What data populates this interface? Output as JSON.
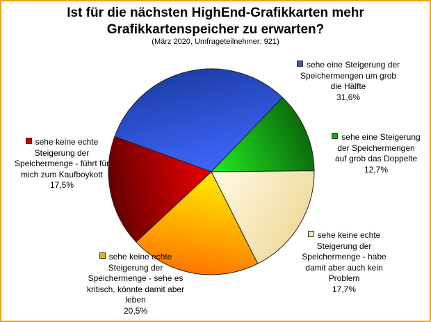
{
  "chart_data": {
    "type": "pie",
    "title_line1": "Ist für die nächsten HighEnd-Grafikkarten mehr",
    "title_line2": "Grafikkartenspeicher zu erwarten?",
    "subtitle": "(März 2020, Umfrageteilnehmer: 921)",
    "slices": [
      {
        "label": "sehe eine Steigerung der\nSpeichermengen um grob\ndie Hälfte",
        "value": 31.6,
        "value_label": "31,6%",
        "color": "#3355dd"
      },
      {
        "label": "sehe eine Steigerung\nder Speichermengen\nauf grob das Doppelte",
        "value": 12.7,
        "value_label": "12,7%",
        "color": "#1aa81a"
      },
      {
        "label": "sehe keine echte\nSteigerung der\nSpeichermenge - habe\ndamit aber auch kein\nProblem",
        "value": 17.7,
        "value_label": "17,7%",
        "color": "#f6e9b4"
      },
      {
        "label": "sehe keine echte\nSteigerung der\nSpeichermenge - sehe es\nkritisch, könnte damit aber\nleben",
        "value": 20.5,
        "value_label": "20,5%",
        "color": "#ffaa00"
      },
      {
        "label": "sehe keine echte\nSteigerung der\nSpeichermenge - führt für\nmich zum Kaufboykott",
        "value": 17.5,
        "value_label": "17,5%",
        "color": "#c00000"
      }
    ],
    "legend": "none"
  }
}
